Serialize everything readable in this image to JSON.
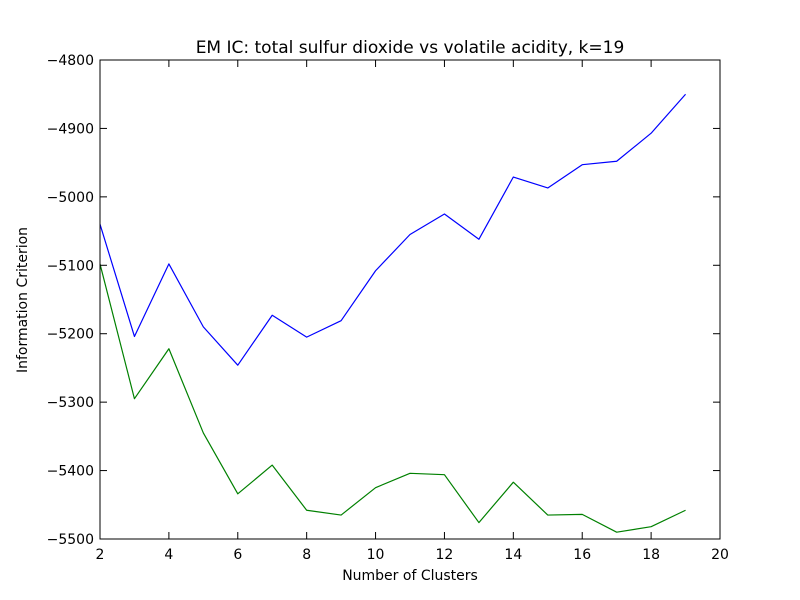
{
  "chart_data": {
    "type": "line",
    "title": "EM IC: total sulfur dioxide vs volatile acidity, k=19",
    "xlabel": "Number of Clusters",
    "ylabel": "Information Criterion",
    "xlim": [
      2,
      20
    ],
    "ylim": [
      -5500,
      -4800
    ],
    "xticks": [
      2,
      4,
      6,
      8,
      10,
      12,
      14,
      16,
      18,
      20
    ],
    "yticks": [
      -5500,
      -5400,
      -5300,
      -5200,
      -5100,
      -5000,
      -4900,
      -4800
    ],
    "xtick_labels": [
      "2",
      "4",
      "6",
      "8",
      "10",
      "12",
      "14",
      "16",
      "18",
      "20"
    ],
    "ytick_labels": [
      "−5500",
      "−5400",
      "−5300",
      "−5200",
      "−5100",
      "−5000",
      "−4900",
      "−4800"
    ],
    "grid": false,
    "x": [
      2,
      3,
      4,
      5,
      6,
      7,
      8,
      9,
      10,
      11,
      12,
      13,
      14,
      15,
      16,
      17,
      18,
      19
    ],
    "series": [
      {
        "color": "#0000ff",
        "values": [
          -5040,
          -5204,
          -5098,
          -5190,
          -5246,
          -5173,
          -5205,
          -5181,
          -5108,
          -5055,
          -5025,
          -5062,
          -4971,
          -4987,
          -4953,
          -4948,
          -4907,
          -4850
        ]
      },
      {
        "color": "#008000",
        "values": [
          -5098,
          -5295,
          -5222,
          -5345,
          -5434,
          -5392,
          -5458,
          -5465,
          -5425,
          -5404,
          -5406,
          -5476,
          -5417,
          -5465,
          -5464,
          -5490,
          -5482,
          -5458
        ]
      }
    ]
  }
}
